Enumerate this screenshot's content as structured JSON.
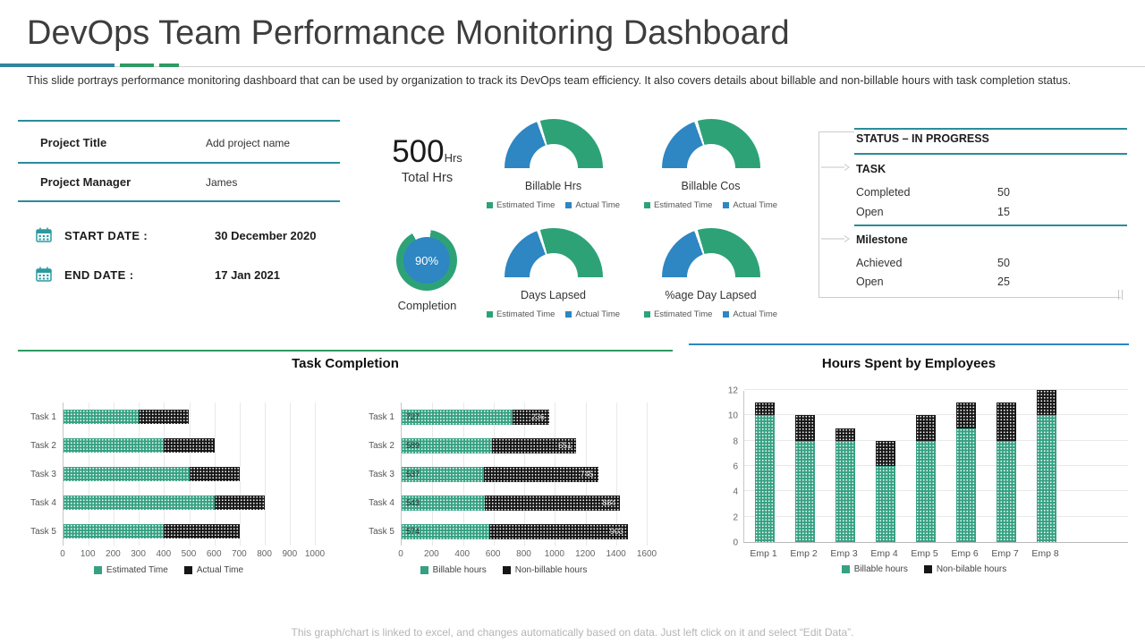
{
  "title": "DevOps Team Performance Monitoring Dashboard",
  "description": "This slide portrays performance monitoring dashboard that can be used by organization to track its DevOps team efficiency. It also covers details about billable and non-billable hours with task completion status.",
  "colors": {
    "teal_line": "#2b8c9b",
    "rule_teal": "#31859C",
    "rule_green": "#2E9B63",
    "green": "#2EA277",
    "blue": "#2E86C3",
    "bar_teal": "#35a182",
    "bar_black": "#161616",
    "section_line_left": "#2E9B63",
    "section_line_right": "#2E86C3"
  },
  "project_info": {
    "rows": [
      {
        "label": "Project Title",
        "value": "Add project name"
      },
      {
        "label": "Project Manager",
        "value": "James"
      }
    ],
    "dates": [
      {
        "label": "START DATE :",
        "value": "30 December 2020"
      },
      {
        "label": "END DATE :",
        "value": "17 Jan 2021"
      }
    ]
  },
  "summary": {
    "total_value": "500",
    "total_unit": "Hrs",
    "total_label": "Total Hrs",
    "completion_pct": "90%",
    "completion_label": "Completion",
    "completion_ring_pct": 90
  },
  "gauges": [
    {
      "label": "Billable Hrs"
    },
    {
      "label": "Billable Cos"
    },
    {
      "label": "Days Lapsed"
    },
    {
      "label": "%age Day Lapsed"
    }
  ],
  "gauge_legend": [
    "Estimated Time",
    "Actual Time"
  ],
  "gauge_split": {
    "actual_pct": 40,
    "estimated_pct": 60
  },
  "status_panel": {
    "title": "STATUS – IN PROGRESS",
    "sections": [
      {
        "heading": "TASK",
        "rows": [
          {
            "label": "Completed",
            "value": "50"
          },
          {
            "label": "Open",
            "value": "15"
          }
        ]
      },
      {
        "heading": "Milestone",
        "rows": [
          {
            "label": "Achieved",
            "value": "50"
          },
          {
            "label": "Open",
            "value": "25"
          }
        ]
      }
    ]
  },
  "chart_data": [
    {
      "type": "bar",
      "orientation": "horizontal",
      "stacked": true,
      "title": "Task Completion",
      "categories": [
        "Task 1",
        "Task 2",
        "Task 3",
        "Task 4",
        "Task 5"
      ],
      "series": [
        {
          "name": "Estimated Time",
          "values": [
            300,
            400,
            500,
            600,
            400
          ],
          "color": "#35a182"
        },
        {
          "name": "Actual Time",
          "values": [
            200,
            200,
            200,
            200,
            300
          ],
          "color": "#161616"
        }
      ],
      "xlim": [
        0,
        1000
      ],
      "xtick_step": 100,
      "grid": true,
      "legend_position": "bottom",
      "data_labels": false
    },
    {
      "type": "bar",
      "orientation": "horizontal",
      "stacked": true,
      "title": "",
      "categories": [
        "Task 1",
        "Task 2",
        "Task 3",
        "Task 4",
        "Task 5"
      ],
      "series": [
        {
          "name": "Billable hours",
          "values": [
            727,
            589,
            537,
            543,
            574
          ],
          "color": "#35a182"
        },
        {
          "name": "Non-billable hours",
          "values": [
            236,
            551,
            745,
            884,
            903
          ],
          "color": "#161616"
        }
      ],
      "xlim": [
        0,
        1600
      ],
      "xtick_step": 200,
      "grid": true,
      "legend_position": "bottom",
      "data_labels": true
    },
    {
      "type": "bar",
      "orientation": "vertical",
      "stacked": true,
      "title": "Hours Spent by Employees",
      "categories": [
        "Emp 1",
        "Emp 2",
        "Emp 3",
        "Emp 4",
        "Emp 5",
        "Emp 6",
        "Emp 7",
        "Emp 8"
      ],
      "series": [
        {
          "name": "Billable hours",
          "values": [
            10,
            8,
            8,
            6,
            8,
            9,
            8,
            10
          ],
          "color": "#35a182"
        },
        {
          "name": "Non-bilable hours",
          "values": [
            1,
            2,
            1,
            2,
            2,
            2,
            3,
            2
          ],
          "color": "#161616"
        }
      ],
      "ylim": [
        0,
        12
      ],
      "ytick_step": 2,
      "grid": true,
      "legend_position": "bottom",
      "data_labels": false
    }
  ],
  "footer": "This graph/chart is linked to excel, and changes automatically based on data. Just left click on it and select “Edit Data”."
}
